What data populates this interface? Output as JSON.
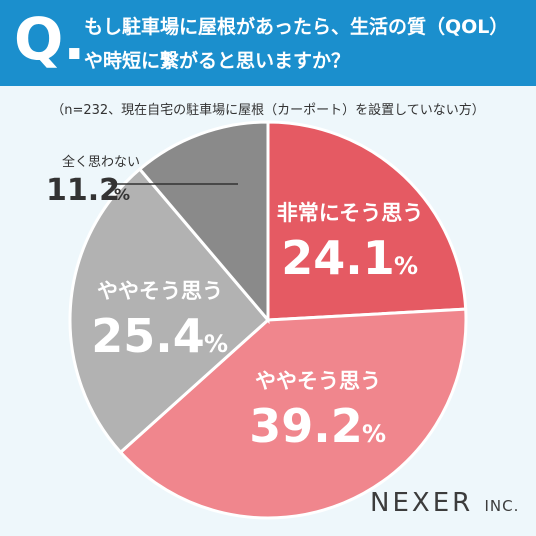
{
  "header": {
    "q_mark": "Q.",
    "question_line1": "もし駐車場に屋根があったら、生活の質（QOL）",
    "question_line2": "や時短に繋がると思いますか？"
  },
  "note": "（n=232、現在自宅の駐車場に屋根（カーポート）を設置していない方）",
  "brand": {
    "name": "NEXER",
    "suffix": "INC."
  },
  "chart_data": {
    "type": "pie",
    "title": "もし駐車場に屋根があったら、生活の質（QOL）や時短に繋がると思いますか？",
    "n": 232,
    "slices": [
      {
        "label": "非常にそう思う",
        "value": 24.1,
        "display": "24.1",
        "color": "#e55a63",
        "text_color": "#ffffff"
      },
      {
        "label": "ややそう思う",
        "value": 39.2,
        "display": "39.2",
        "color": "#f0868d",
        "text_color": "#ffffff"
      },
      {
        "label": "ややそう思う",
        "value": 25.4,
        "display": "25.4",
        "color": "#b2b2b2",
        "text_color": "#ffffff"
      },
      {
        "label": "全く思わない",
        "value": 11.2,
        "display": "11.2",
        "color": "#8a8a8a",
        "text_color": "#333333"
      }
    ],
    "unit": "%",
    "start_angle": "12 o'clock",
    "direction": "clockwise",
    "legend": "none"
  }
}
